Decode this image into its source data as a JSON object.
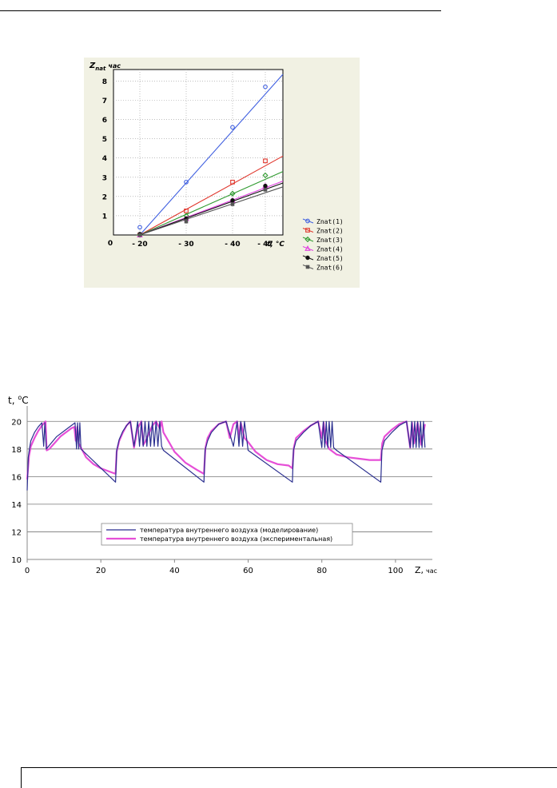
{
  "chart_data": [
    {
      "type": "scatter",
      "ylabel": "Z",
      "ylabel_sub": "nat",
      "ylabel_unit": "час",
      "xlabel": "t, °C",
      "x_ticks": [
        "- 20",
        "- 30",
        "- 40",
        "- 47"
      ],
      "x_values": [
        -20,
        -30,
        -40,
        -47
      ],
      "y_ticks": [
        "0",
        "1",
        "2",
        "3",
        "4",
        "5",
        "6",
        "7",
        "8"
      ],
      "ylim": [
        0,
        8.6
      ],
      "grid": true,
      "legend_position": "right-bottom",
      "series": [
        {
          "name": "Znat(1)",
          "color": "#3f5fe0",
          "marker": "circle-open",
          "values": [
            0.4,
            2.75,
            5.6,
            7.7
          ],
          "fit": [
            0.0,
            8.35
          ]
        },
        {
          "name": "Znat(2)",
          "color": "#e0352b",
          "marker": "square-open",
          "values": [
            0.0,
            1.25,
            2.75,
            3.85
          ],
          "fit": [
            0.0,
            4.1
          ]
        },
        {
          "name": "Znat(3)",
          "color": "#2f9a2f",
          "marker": "diamond-open",
          "values": [
            0.0,
            1.0,
            2.15,
            3.1
          ],
          "fit": [
            0.0,
            3.3
          ]
        },
        {
          "name": "Znat(4)",
          "color": "#e040e0",
          "marker": "triangle-open",
          "values": [
            0.0,
            0.85,
            1.8,
            2.55
          ],
          "fit": [
            0.0,
            2.8
          ]
        },
        {
          "name": "Znat(5)",
          "color": "#111111",
          "marker": "circle-filled",
          "values": [
            0.05,
            0.85,
            1.8,
            2.55
          ],
          "fit": [
            0.0,
            2.7
          ]
        },
        {
          "name": "Znat(6)",
          "color": "#555555",
          "marker": "square-filled",
          "values": [
            0.0,
            0.7,
            1.6,
            2.35
          ],
          "fit": [
            0.0,
            2.5
          ]
        }
      ]
    },
    {
      "type": "line",
      "ylabel": "t, °C",
      "xlabel": "Z,",
      "xlabel_unit": "час",
      "x_ticks": [
        "0",
        "20",
        "40",
        "60",
        "80",
        "100"
      ],
      "y_ticks": [
        "10",
        "12",
        "14",
        "16",
        "18",
        "20"
      ],
      "xlim": [
        0,
        110
      ],
      "ylim": [
        10,
        21
      ],
      "grid": "horizontal",
      "legend_position": "bottom-center",
      "series": [
        {
          "name": "температура внутреннего воздуха (моделирование)",
          "color": "#2b2f8f",
          "x": [
            0,
            0.3,
            0.6,
            1,
            2,
            3,
            4,
            4.5,
            4.8,
            5.2,
            8,
            11,
            13,
            13.4,
            13.7,
            14,
            14.3,
            14.6,
            15,
            24,
            24.3,
            25,
            26,
            27,
            28,
            29,
            30,
            30.5,
            31,
            31.5,
            32,
            32.5,
            33,
            33.5,
            34,
            34.5,
            35,
            35.5,
            36,
            36.5,
            37,
            48,
            48.3,
            49,
            50,
            52,
            54,
            56,
            57,
            57.5,
            58,
            58.5,
            59,
            60,
            72,
            72.3,
            73,
            75,
            77,
            79,
            80,
            80.4,
            80.8,
            81.2,
            81.6,
            82,
            82.4,
            82.8,
            83.2,
            84,
            96,
            96.3,
            97,
            99,
            101,
            103,
            104,
            104.4,
            104.8,
            105.2,
            105.6,
            106,
            106.4,
            106.8,
            107.2,
            107.6,
            108
          ],
          "y": [
            15.0,
            17.4,
            18.0,
            18.6,
            19.2,
            19.6,
            19.9,
            18.2,
            19.9,
            18.0,
            18.9,
            19.5,
            19.9,
            18.0,
            19.9,
            18.0,
            19.9,
            18.0,
            17.9,
            15.6,
            17.9,
            18.7,
            19.3,
            19.7,
            20.0,
            18.2,
            20.0,
            18.2,
            20.0,
            18.2,
            20.0,
            18.2,
            20.0,
            18.2,
            20.0,
            18.2,
            20.0,
            18.2,
            20.0,
            18.2,
            17.9,
            15.6,
            17.9,
            18.6,
            19.2,
            19.8,
            20.0,
            18.2,
            20.0,
            18.2,
            20.0,
            18.2,
            20.0,
            17.9,
            15.6,
            17.9,
            18.6,
            19.2,
            19.7,
            20.0,
            18.1,
            20.0,
            18.1,
            20.0,
            18.1,
            20.0,
            18.1,
            20.0,
            18.1,
            17.9,
            15.6,
            17.9,
            18.6,
            19.2,
            19.7,
            20.0,
            18.1,
            20.0,
            18.1,
            20.0,
            18.1,
            20.0,
            18.1,
            20.0,
            18.1,
            20.0,
            18.1
          ]
        },
        {
          "name": "температура внутреннего воздуха (экспериментальная)",
          "color": "#e64fd7",
          "x": [
            0,
            0.5,
            1,
            2,
            3,
            4,
            5,
            5.3,
            6,
            7,
            8,
            9,
            10,
            11,
            12,
            12.8,
            13.2,
            13.6,
            14,
            16,
            18,
            20,
            22,
            24,
            24.3,
            25,
            26,
            27,
            28,
            29,
            30,
            31,
            31.5,
            32,
            34,
            35,
            36,
            36.5,
            37,
            40,
            43,
            46,
            48,
            48.4,
            49,
            50,
            52,
            54,
            55,
            56,
            57,
            57.5,
            58,
            59,
            60,
            62,
            65,
            68,
            71,
            72,
            72.4,
            73,
            75,
            77,
            79,
            80,
            80.5,
            81,
            82,
            84,
            87,
            90,
            93,
            96,
            96.4,
            97,
            99,
            101,
            103,
            104,
            104.5,
            105,
            106,
            107,
            108
          ],
          "y": [
            15.8,
            17.5,
            18.2,
            18.8,
            19.3,
            19.7,
            20.0,
            17.9,
            18.0,
            18.3,
            18.6,
            18.9,
            19.1,
            19.3,
            19.5,
            19.6,
            18.6,
            19.6,
            18.4,
            17.4,
            16.9,
            16.6,
            16.4,
            16.2,
            17.8,
            18.6,
            19.2,
            19.7,
            20.0,
            18.1,
            19.5,
            20.0,
            18.3,
            18.5,
            19.7,
            20.0,
            19.5,
            20.0,
            19.2,
            17.8,
            17.0,
            16.5,
            16.2,
            18.1,
            18.8,
            19.3,
            19.8,
            20.0,
            18.8,
            19.8,
            20.0,
            18.8,
            19.9,
            18.8,
            18.5,
            17.8,
            17.2,
            16.9,
            16.8,
            16.6,
            18.1,
            18.8,
            19.3,
            19.7,
            20.0,
            18.8,
            19.9,
            18.6,
            18.0,
            17.6,
            17.4,
            17.3,
            17.2,
            17.2,
            18.4,
            18.9,
            19.4,
            19.8,
            20.0,
            18.1,
            19.9,
            18.4,
            19.9,
            18.3,
            19.8
          ]
        }
      ]
    }
  ]
}
